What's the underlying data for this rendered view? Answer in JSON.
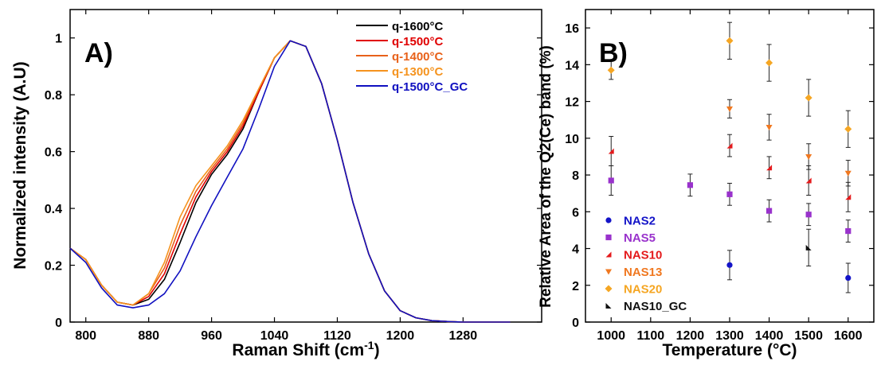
{
  "chart_data": [
    {
      "type": "line",
      "panel_label": "A)",
      "xlabel_main": "Raman Shift (cm",
      "xlabel_sup": "-1",
      "xlabel_close": ")",
      "ylabel": "Normalized intensity (A.U)",
      "xlim": [
        780,
        1380
      ],
      "ylim": [
        0,
        1.1
      ],
      "x_ticks": [
        800,
        880,
        960,
        1040,
        1120,
        1200,
        1280
      ],
      "x_tick_labels": [
        "800",
        "880",
        "960",
        "1040",
        "1120",
        "1200",
        "1280"
      ],
      "y_ticks": [
        0,
        0.2,
        0.4,
        0.6,
        0.8,
        1
      ],
      "y_tick_labels": [
        "0",
        "0.2",
        "0.4",
        "0.6",
        "0.8",
        "1"
      ],
      "legend_position": "top-right",
      "series": [
        {
          "name": "q-1600°C",
          "color": "#000000",
          "x": [
            780,
            800,
            820,
            840,
            860,
            880,
            900,
            920,
            940,
            960,
            980,
            1000,
            1020,
            1040,
            1060,
            1080,
            1100,
            1120,
            1140,
            1160,
            1180,
            1200,
            1220,
            1240,
            1260,
            1280,
            1300,
            1320,
            1340
          ],
          "y": [
            0.26,
            0.22,
            0.13,
            0.07,
            0.06,
            0.08,
            0.15,
            0.28,
            0.42,
            0.52,
            0.59,
            0.68,
            0.81,
            0.93,
            0.99,
            0.97,
            0.84,
            0.64,
            0.42,
            0.24,
            0.11,
            0.04,
            0.015,
            0.005,
            0.002,
            0,
            0,
            0,
            0
          ]
        },
        {
          "name": "q-1500°C",
          "color": "#e00000",
          "x": [
            780,
            800,
            820,
            840,
            860,
            880,
            900,
            920,
            940,
            960,
            980,
            1000,
            1020,
            1040,
            1060,
            1080,
            1100,
            1120,
            1140,
            1160,
            1180,
            1200,
            1220,
            1240,
            1260,
            1280,
            1300,
            1320,
            1340
          ],
          "y": [
            0.26,
            0.22,
            0.13,
            0.07,
            0.06,
            0.09,
            0.17,
            0.31,
            0.44,
            0.53,
            0.6,
            0.69,
            0.81,
            0.93,
            0.99,
            0.97,
            0.84,
            0.64,
            0.42,
            0.24,
            0.11,
            0.04,
            0.015,
            0.005,
            0.002,
            0,
            0,
            0,
            0
          ]
        },
        {
          "name": "q-1400°C",
          "color": "#e8611a",
          "x": [
            780,
            800,
            820,
            840,
            860,
            880,
            900,
            920,
            940,
            960,
            980,
            1000,
            1020,
            1040,
            1060,
            1080,
            1100,
            1120,
            1140,
            1160,
            1180,
            1200,
            1220,
            1240,
            1260,
            1280,
            1300,
            1320,
            1340
          ],
          "y": [
            0.26,
            0.22,
            0.13,
            0.07,
            0.06,
            0.1,
            0.19,
            0.34,
            0.46,
            0.54,
            0.61,
            0.7,
            0.82,
            0.93,
            0.99,
            0.97,
            0.84,
            0.64,
            0.42,
            0.24,
            0.11,
            0.04,
            0.015,
            0.005,
            0.002,
            0,
            0,
            0,
            0
          ]
        },
        {
          "name": "q-1300°C",
          "color": "#f5931e",
          "x": [
            780,
            800,
            820,
            840,
            860,
            880,
            900,
            920,
            940,
            960,
            980,
            1000,
            1020,
            1040,
            1060,
            1080,
            1100,
            1120,
            1140,
            1160,
            1180,
            1200,
            1220,
            1240,
            1260,
            1280,
            1300,
            1320,
            1340
          ],
          "y": [
            0.26,
            0.22,
            0.13,
            0.07,
            0.06,
            0.1,
            0.21,
            0.37,
            0.48,
            0.55,
            0.62,
            0.71,
            0.82,
            0.93,
            0.99,
            0.97,
            0.84,
            0.64,
            0.42,
            0.24,
            0.11,
            0.04,
            0.015,
            0.005,
            0.002,
            0,
            0,
            0,
            0
          ]
        },
        {
          "name": "q-1500°C_GC",
          "color": "#1010c0",
          "x": [
            780,
            800,
            820,
            840,
            860,
            880,
            900,
            920,
            940,
            960,
            980,
            1000,
            1020,
            1040,
            1060,
            1080,
            1100,
            1120,
            1140,
            1160,
            1180,
            1200,
            1220,
            1240,
            1260,
            1280,
            1300,
            1320,
            1340
          ],
          "y": [
            0.26,
            0.21,
            0.12,
            0.06,
            0.05,
            0.06,
            0.1,
            0.18,
            0.3,
            0.41,
            0.51,
            0.61,
            0.75,
            0.9,
            0.99,
            0.97,
            0.84,
            0.64,
            0.42,
            0.24,
            0.11,
            0.04,
            0.015,
            0.005,
            0.002,
            0,
            0,
            0,
            0
          ]
        }
      ]
    },
    {
      "type": "scatter",
      "panel_label": "B)",
      "xlabel": "Temperature (°C)",
      "ylabel": "Relative Area of the Q2(Ce) band (%)",
      "xlim": [
        935,
        1665
      ],
      "ylim": [
        0,
        17
      ],
      "x_ticks": [
        1000,
        1100,
        1200,
        1300,
        1400,
        1500,
        1600
      ],
      "x_tick_labels": [
        "1000",
        "1100",
        "1200",
        "1300",
        "1400",
        "1500",
        "1600"
      ],
      "y_ticks": [
        0,
        2,
        4,
        6,
        8,
        10,
        12,
        14,
        16
      ],
      "y_tick_labels": [
        "0",
        "2",
        "4",
        "6",
        "8",
        "10",
        "12",
        "14",
        "16"
      ],
      "legend_position": "bottom-left",
      "series": [
        {
          "name": "NAS2",
          "color": "#1414c8",
          "marker": "circle",
          "points": [
            {
              "x": 1300,
              "y": 3.1,
              "err": 0.8
            },
            {
              "x": 1600,
              "y": 2.4,
              "err": 0.8
            }
          ]
        },
        {
          "name": "NAS5",
          "color": "#9932cc",
          "marker": "square",
          "points": [
            {
              "x": 1000,
              "y": 7.7,
              "err": 0.8
            },
            {
              "x": 1200,
              "y": 7.45,
              "err": 0.6
            },
            {
              "x": 1300,
              "y": 6.95,
              "err": 0.6
            },
            {
              "x": 1400,
              "y": 6.05,
              "err": 0.6
            },
            {
              "x": 1500,
              "y": 5.85,
              "err": 0.6
            },
            {
              "x": 1600,
              "y": 4.95,
              "err": 0.6
            }
          ]
        },
        {
          "name": "NAS10",
          "color": "#e41a1c",
          "marker": "triangle-ne",
          "points": [
            {
              "x": 1000,
              "y": 9.3,
              "err": 0.8
            },
            {
              "x": 1300,
              "y": 9.6,
              "err": 0.6
            },
            {
              "x": 1400,
              "y": 8.4,
              "err": 0.6
            },
            {
              "x": 1500,
              "y": 7.7,
              "err": 0.8
            },
            {
              "x": 1600,
              "y": 6.8,
              "err": 0.8
            }
          ]
        },
        {
          "name": "NAS13",
          "color": "#f07820",
          "marker": "triangle-down",
          "points": [
            {
              "x": 1300,
              "y": 11.6,
              "err": 0.5
            },
            {
              "x": 1400,
              "y": 10.6,
              "err": 0.7
            },
            {
              "x": 1500,
              "y": 9.0,
              "err": 0.7
            },
            {
              "x": 1600,
              "y": 8.1,
              "err": 0.7
            }
          ]
        },
        {
          "name": "NAS20",
          "color": "#f5a623",
          "marker": "diamond",
          "points": [
            {
              "x": 1000,
              "y": 13.7,
              "err": 0.5
            },
            {
              "x": 1300,
              "y": 15.3,
              "err": 1.0
            },
            {
              "x": 1400,
              "y": 14.1,
              "err": 1.0
            },
            {
              "x": 1500,
              "y": 12.2,
              "err": 1.0
            },
            {
              "x": 1600,
              "y": 10.5,
              "err": 1.0
            }
          ]
        },
        {
          "name": "NAS10_GC",
          "color": "#111111",
          "marker": "triangle-sw",
          "points": [
            {
              "x": 1500,
              "y": 4.05,
              "err": 1.0
            }
          ]
        }
      ]
    }
  ]
}
